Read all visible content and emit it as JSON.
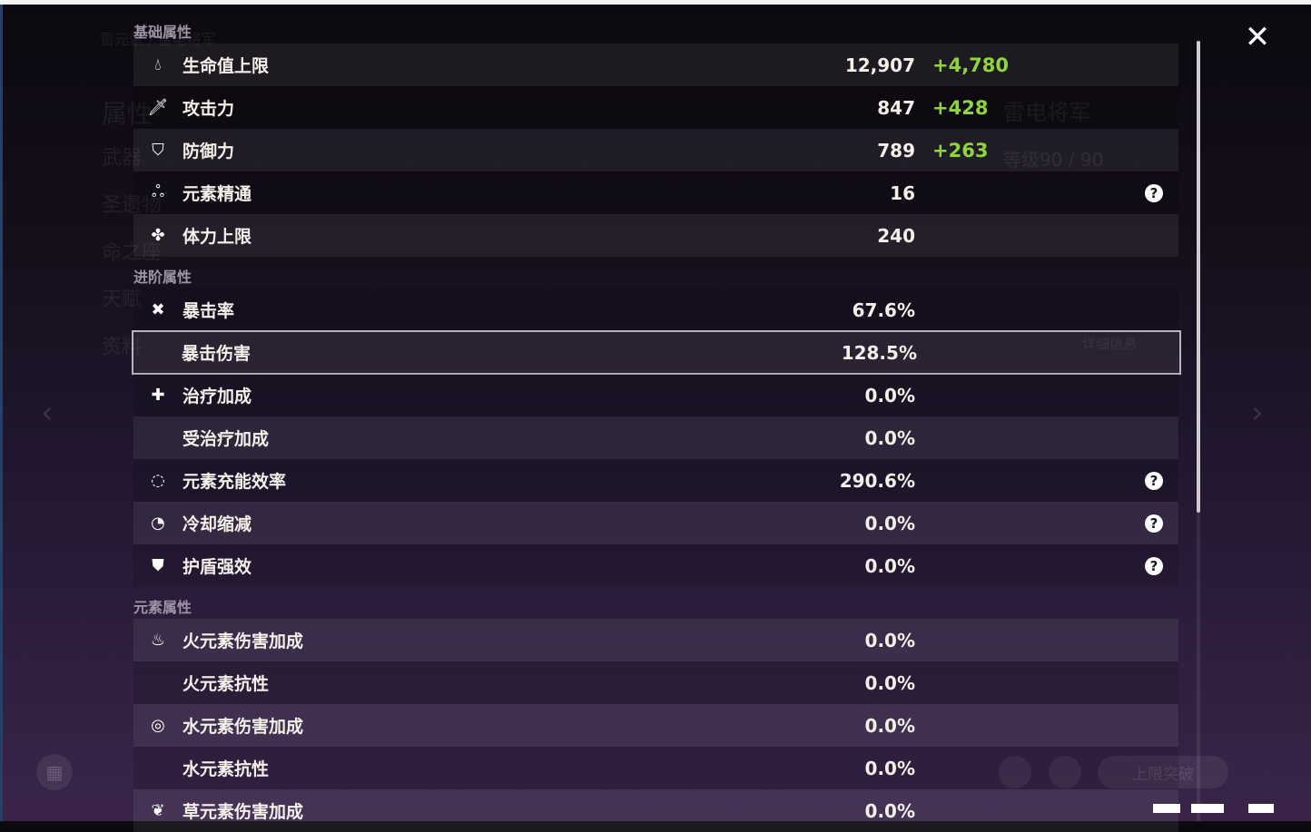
{
  "background": {
    "character_title": "雷元素 / 雷电将军",
    "menu_items": [
      "属性",
      "武器",
      "圣遗物",
      "命之座",
      "天赋",
      "资料"
    ],
    "character_name": "雷电将军",
    "level": "等级90 / 90",
    "details_button": "详细信息",
    "ascend_button": "上限突破"
  },
  "sections": {
    "basic": {
      "title": "基础属性",
      "rows": [
        {
          "icon": "hp-drop-icon",
          "label": "生命值上限",
          "value": "12,907",
          "bonus": "+4,780",
          "help": false
        },
        {
          "icon": "sword-icon",
          "label": "攻击力",
          "value": "847",
          "bonus": "+428",
          "help": false
        },
        {
          "icon": "shield-icon",
          "label": "防御力",
          "value": "789",
          "bonus": "+263",
          "help": false
        },
        {
          "icon": "elemental-mastery-icon",
          "label": "元素精通",
          "value": "16",
          "bonus": "",
          "help": true
        },
        {
          "icon": "stamina-icon",
          "label": "体力上限",
          "value": "240",
          "bonus": "",
          "help": false
        }
      ]
    },
    "advanced": {
      "title": "进阶属性",
      "rows": [
        {
          "icon": "crit-rate-icon",
          "label": "暴击率",
          "value": "67.6%",
          "help": false
        },
        {
          "icon": "",
          "label": "暴击伤害",
          "value": "128.5%",
          "help": false,
          "selected": true
        },
        {
          "icon": "healing-cross-icon",
          "label": "治疗加成",
          "value": "0.0%",
          "help": false
        },
        {
          "icon": "",
          "label": "受治疗加成",
          "value": "0.0%",
          "help": false
        },
        {
          "icon": "energy-recharge-icon",
          "label": "元素充能效率",
          "value": "290.6%",
          "help": true
        },
        {
          "icon": "cooldown-icon",
          "label": "冷却缩减",
          "value": "0.0%",
          "help": true
        },
        {
          "icon": "shield-strength-icon",
          "label": "护盾强效",
          "value": "0.0%",
          "help": true
        }
      ]
    },
    "elemental": {
      "title": "元素属性",
      "rows": [
        {
          "icon": "pyro-icon",
          "label": "火元素伤害加成",
          "value": "0.0%"
        },
        {
          "icon": "",
          "label": "火元素抗性",
          "value": "0.0%"
        },
        {
          "icon": "hydro-icon",
          "label": "水元素伤害加成",
          "value": "0.0%"
        },
        {
          "icon": "",
          "label": "水元素抗性",
          "value": "0.0%"
        },
        {
          "icon": "dendro-icon",
          "label": "草元素伤害加成",
          "value": "0.0%"
        }
      ]
    }
  },
  "colors": {
    "bonus": "#8fd63a",
    "text": "#f4f0ea",
    "section": "#9d94a6"
  }
}
